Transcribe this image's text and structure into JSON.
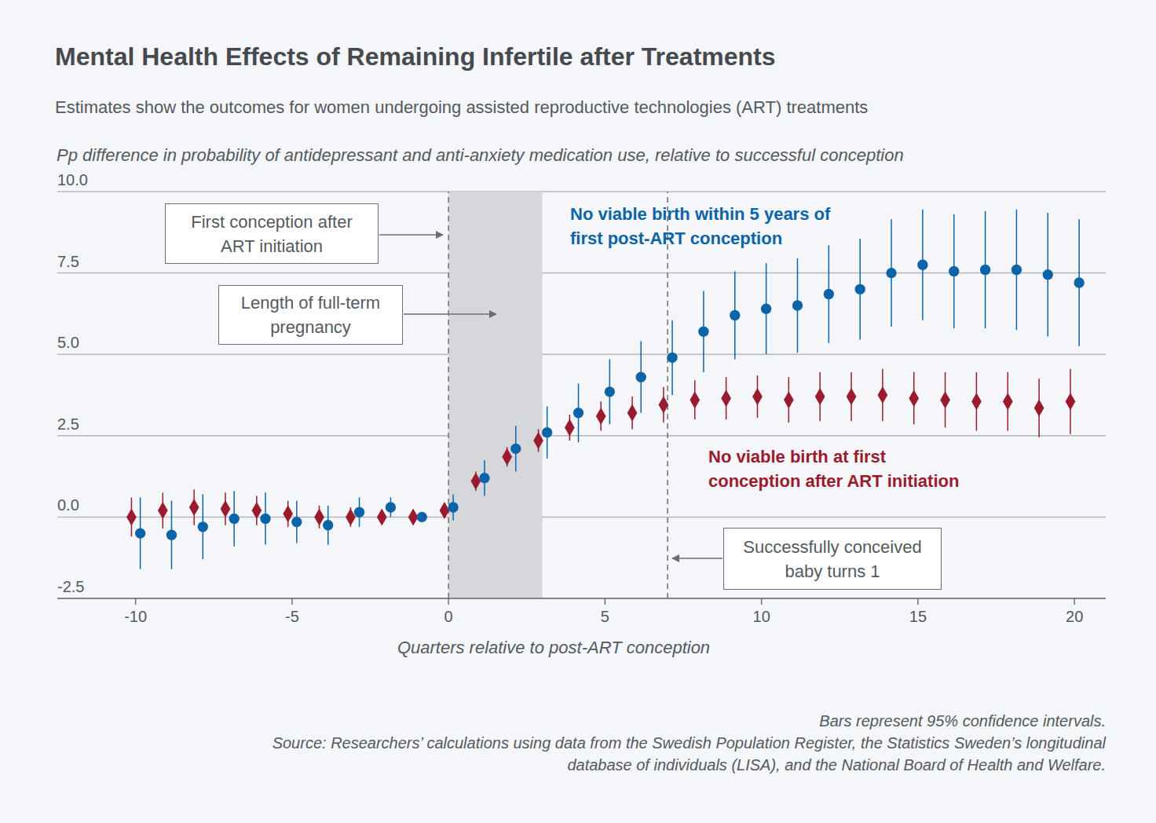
{
  "chart_data": {
    "type": "scatter",
    "title": "Mental Health Effects of Remaining Infertile after Treatments",
    "subtitle": "Estimates show the outcomes for women undergoing assisted reproductive technologies (ART) treatments",
    "y_label": "Pp difference in probability of antidepressant and anti-anxiety medication use, relative to successful conception",
    "x_label": "Quarters relative to post-ART conception",
    "xlim": [
      -12.5,
      21
    ],
    "xticks": [
      -10,
      -5,
      0,
      5,
      10,
      15,
      20
    ],
    "ylim": [
      -2.5,
      10
    ],
    "yticks": [
      -2.5,
      {
        "value": 0,
        "label": "0.0"
      },
      2.5,
      {
        "value": 5,
        "label": "5.0"
      },
      7.5,
      {
        "value": 10,
        "label": "10.0"
      }
    ],
    "grid": true,
    "x": [
      -10,
      -9,
      -8,
      -7,
      -6,
      -5,
      -4,
      -3,
      -2,
      -1,
      0,
      1,
      2,
      3,
      4,
      5,
      6,
      7,
      8,
      9,
      10,
      11,
      12,
      13,
      14,
      15,
      16,
      17,
      18,
      19,
      20
    ],
    "series": [
      {
        "name": "No viable birth at first conception after ART initiation",
        "color": "#9b1b2e",
        "marker": "diamond",
        "values": [
          0.0,
          0.2,
          0.3,
          0.25,
          0.2,
          0.1,
          0.0,
          0.0,
          0.0,
          0.0,
          0.2,
          1.1,
          1.85,
          2.35,
          2.75,
          3.1,
          3.2,
          3.45,
          3.6,
          3.65,
          3.7,
          3.6,
          3.7,
          3.7,
          3.75,
          3.65,
          3.6,
          3.55,
          3.55,
          3.35,
          3.55
        ],
        "errors": [
          0.6,
          0.55,
          0.55,
          0.5,
          0.45,
          0.4,
          0.35,
          0.3,
          0.2,
          0.0,
          0.15,
          0.3,
          0.3,
          0.35,
          0.4,
          0.45,
          0.5,
          0.55,
          0.6,
          0.65,
          0.65,
          0.7,
          0.75,
          0.75,
          0.8,
          0.8,
          0.85,
          0.9,
          0.9,
          0.9,
          1.0
        ]
      },
      {
        "name": "No viable birth within 5 years of first post-ART conception",
        "color": "#0b64a8",
        "marker": "circle",
        "values": [
          -0.5,
          -0.55,
          -0.3,
          -0.05,
          -0.05,
          -0.15,
          -0.25,
          0.15,
          0.3,
          0.0,
          0.3,
          1.2,
          2.1,
          2.6,
          3.2,
          3.85,
          4.3,
          4.9,
          5.7,
          6.2,
          6.4,
          6.5,
          6.85,
          7.0,
          7.5,
          7.75,
          7.55,
          7.6,
          7.6,
          7.45,
          7.2
        ],
        "errors": [
          1.1,
          1.05,
          1.0,
          0.85,
          0.8,
          0.65,
          0.6,
          0.45,
          0.3,
          0.0,
          0.4,
          0.55,
          0.7,
          0.8,
          0.9,
          1.0,
          1.1,
          1.15,
          1.25,
          1.35,
          1.4,
          1.45,
          1.5,
          1.55,
          1.65,
          1.7,
          1.75,
          1.8,
          1.85,
          1.9,
          1.95
        ]
      }
    ],
    "reference_lines": [
      {
        "x": 0,
        "label": "First conception after ART initiation",
        "line_style": "dashed"
      },
      {
        "x": 7,
        "label": "Successfully conceived baby turns 1",
        "line_style": "dashed"
      }
    ],
    "shaded_region": {
      "x": [
        0,
        3
      ],
      "label": "Length of full-term pregnancy"
    },
    "notes": [
      "Bars represent 95% confidence intervals.",
      "Source: Researchers’ calculations using data from the Swedish Population Register, the Statistics Sweden’s longitudinal database of individuals (LISA), and the National Board of Health and Welfare."
    ]
  }
}
